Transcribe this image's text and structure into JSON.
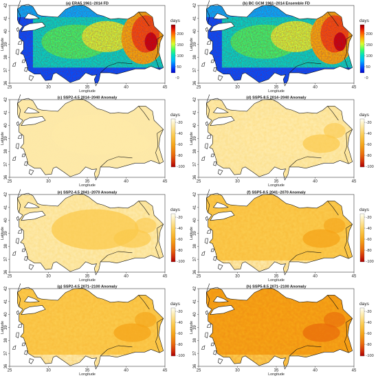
{
  "figure": {
    "panels": [
      {
        "id": "a",
        "title": "(a) ERA5 1961–2014 FD",
        "kind": "climatology",
        "colorbar": {
          "unit": "days",
          "ticks": [
            "200",
            "150",
            "100",
            "50",
            "0"
          ]
        }
      },
      {
        "id": "b",
        "title": "(b) BC GCM 1961–2014 Ensemble FD",
        "kind": "climatology",
        "colorbar": {
          "unit": "days",
          "ticks": [
            "200",
            "150",
            "100",
            "50",
            "0"
          ]
        }
      },
      {
        "id": "c",
        "title": "(c) SSP2-4.5 2014–2040 Anomaly",
        "kind": "anomaly",
        "intensity": 0.18,
        "colorbar": {
          "unit": "days",
          "ticks": [
            "-20",
            "-40",
            "-60",
            "-80",
            "-100"
          ]
        }
      },
      {
        "id": "d",
        "title": "(d) SSP5-8.5 2014–2040 Anomaly",
        "kind": "anomaly",
        "intensity": 0.26,
        "colorbar": {
          "unit": "days",
          "ticks": [
            "-20",
            "-40",
            "-60",
            "-80",
            "-100"
          ]
        }
      },
      {
        "id": "e",
        "title": "(e) SSP2-4.5 2041–2070 Anomaly",
        "kind": "anomaly",
        "intensity": 0.33,
        "colorbar": {
          "unit": "days",
          "ticks": [
            "-20",
            "-40",
            "-60",
            "-80",
            "-100"
          ]
        }
      },
      {
        "id": "f",
        "title": "(f) SSP5-8.5 2041–2070 Anomaly",
        "kind": "anomaly",
        "intensity": 0.42,
        "colorbar": {
          "unit": "days",
          "ticks": [
            "-20",
            "-40",
            "-60",
            "-80",
            "-100"
          ]
        }
      },
      {
        "id": "g",
        "title": "(g) SSP2-4.5 2071–2100 Anomaly",
        "kind": "anomaly",
        "intensity": 0.48,
        "colorbar": {
          "unit": "days",
          "ticks": [
            "-20",
            "-40",
            "-60",
            "-80",
            "-100"
          ]
        }
      },
      {
        "id": "h",
        "title": "(h) SSP5-8.5 2071–2100 Anomaly",
        "kind": "anomaly",
        "intensity": 0.66,
        "colorbar": {
          "unit": "days",
          "ticks": [
            "-20",
            "-40",
            "-60",
            "-80",
            "-100"
          ]
        }
      }
    ],
    "axes": {
      "xlabel": "Longitude",
      "ylabel": "Latitude",
      "xticks": [
        "25",
        "30",
        "35",
        "40",
        "45"
      ],
      "yticks": [
        "42",
        "41",
        "40",
        "39",
        "38",
        "37",
        "36"
      ]
    },
    "colors": {
      "climatology_scale": [
        "#0000c8",
        "#0050ff",
        "#00b4ff",
        "#00e0c0",
        "#40ff60",
        "#d8ff30",
        "#ffb000",
        "#ff5000",
        "#d00000",
        "#8c0000"
      ],
      "anomaly_scale": [
        "#fffff4",
        "#fde9a8",
        "#fbc94c",
        "#f5a317",
        "#e96a0c",
        "#cf2a08",
        "#a80000"
      ],
      "land_outline": "#111111",
      "sea": "#ffffff"
    }
  },
  "chart_data": {
    "type": "heatmap",
    "description_source": "panel titles and colorbars",
    "panels": [
      {
        "title": "(a) ERA5 1961–2014 FD",
        "unit": "days",
        "colorbar_range": [
          0,
          230
        ]
      },
      {
        "title": "(b) BC GCM 1961–2014 Ensemble FD",
        "unit": "days",
        "colorbar_range": [
          0,
          230
        ]
      },
      {
        "title": "(c) SSP2-4.5 2014–2040 Anomaly",
        "unit": "days",
        "colorbar_range": [
          -100,
          0
        ]
      },
      {
        "title": "(d) SSP5-8.5 2014–2040 Anomaly",
        "unit": "days",
        "colorbar_range": [
          -100,
          0
        ]
      },
      {
        "title": "(e) SSP2-4.5 2041–2070 Anomaly",
        "unit": "days",
        "colorbar_range": [
          -100,
          0
        ]
      },
      {
        "title": "(f) SSP5-8.5 2041–2070 Anomaly",
        "unit": "days",
        "colorbar_range": [
          -100,
          0
        ]
      },
      {
        "title": "(g) SSP2-4.5 2071–2100 Anomaly",
        "unit": "days",
        "colorbar_range": [
          -100,
          0
        ]
      },
      {
        "title": "(h) SSP5-8.5 2071–2100 Anomaly",
        "unit": "days",
        "colorbar_range": [
          -100,
          0
        ]
      }
    ],
    "xlabel": "Longitude",
    "ylabel": "Latitude",
    "xlim": [
      25,
      45
    ],
    "ylim": [
      36,
      42
    ],
    "grid": false
  }
}
